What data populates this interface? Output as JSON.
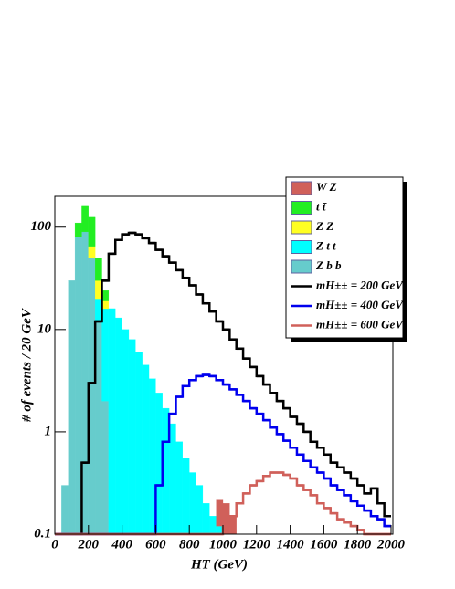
{
  "chart_data": {
    "type": "histogram",
    "x_label": "HT (GeV)",
    "y_label": "# of events / 20 GeV",
    "log_y": true,
    "stacked": true,
    "xlim": [
      0,
      2000
    ],
    "ylim": [
      0.1,
      200
    ],
    "xticks": [
      0,
      200,
      400,
      600,
      800,
      1000,
      1200,
      1400,
      1600,
      1800,
      2000
    ],
    "yticks": [
      0.1,
      1,
      10,
      100
    ],
    "bins": [
      0,
      40,
      80,
      120,
      160,
      200,
      240,
      280,
      320,
      360,
      400,
      440,
      480,
      520,
      560,
      600,
      640,
      680,
      720,
      760,
      800,
      840,
      880,
      920,
      960,
      1000,
      1040,
      1080,
      1120,
      1160,
      1200,
      1240,
      1280,
      1320,
      1360,
      1400,
      1440,
      1480,
      1520,
      1560,
      1600,
      1640,
      1680,
      1720,
      1760,
      1800,
      1840,
      1880,
      1920,
      1960,
      2000
    ],
    "series": [
      {
        "name": "W Z",
        "style": "fill",
        "color": "#d0605a",
        "values": [
          0,
          0,
          0,
          0,
          0,
          0,
          0,
          0,
          0,
          0,
          0,
          0,
          0,
          0,
          0,
          0,
          0,
          0,
          0,
          0,
          0,
          0,
          0,
          0,
          0.1,
          0.2,
          0.15,
          0,
          0,
          0,
          0,
          0,
          0,
          0,
          0,
          0,
          0,
          0,
          0,
          0,
          0,
          0,
          0,
          0,
          0,
          0,
          0,
          0,
          0,
          0
        ]
      },
      {
        "name": "t t̄",
        "style": "fill",
        "color": "#22ee22",
        "values": [
          0,
          0,
          0,
          30,
          70,
          60,
          20,
          5,
          0,
          0,
          0,
          0,
          0,
          0,
          0,
          0,
          0,
          0,
          0,
          0,
          0,
          0,
          0,
          0,
          0,
          0,
          0,
          0,
          0,
          0,
          0,
          0,
          0,
          0,
          0,
          0,
          0,
          0,
          0,
          0,
          0,
          0,
          0,
          0,
          0,
          0,
          0,
          0,
          0,
          0
        ]
      },
      {
        "name": "Z Z",
        "style": "fill",
        "color": "#ffff22",
        "values": [
          0,
          0,
          0,
          0,
          0,
          15,
          10,
          3,
          0,
          0,
          0,
          0,
          0,
          0,
          0,
          0,
          0,
          0,
          0,
          0,
          0,
          0,
          0,
          0,
          0,
          0,
          0,
          0,
          0,
          0,
          0,
          0,
          0,
          0,
          0,
          0,
          0,
          0,
          0,
          0,
          0,
          0,
          0,
          0,
          0,
          0,
          0,
          0,
          0,
          0
        ]
      },
      {
        "name": "Z t t",
        "style": "fill",
        "color": "#00ffff",
        "values": [
          0,
          0,
          0,
          0,
          0,
          0,
          8,
          14,
          16,
          13,
          10,
          8,
          6,
          4.5,
          3.3,
          2.4,
          1.7,
          1.2,
          0.8,
          0.55,
          0.4,
          0.3,
          0.2,
          0.15,
          0.12,
          0,
          0,
          0,
          0,
          0,
          0,
          0,
          0,
          0,
          0,
          0,
          0,
          0,
          0,
          0,
          0,
          0,
          0,
          0,
          0,
          0,
          0,
          0,
          0,
          0
        ]
      },
      {
        "name": "Z b b",
        "style": "fill",
        "color": "#66cccc",
        "values": [
          0,
          0.3,
          30,
          80,
          90,
          50,
          12,
          2,
          0,
          0,
          0,
          0,
          0,
          0,
          0,
          0,
          0,
          0,
          0,
          0,
          0,
          0,
          0,
          0,
          0,
          0,
          0,
          0,
          0,
          0,
          0,
          0,
          0,
          0,
          0,
          0,
          0,
          0,
          0,
          0,
          0,
          0,
          0,
          0,
          0,
          0,
          0,
          0,
          0,
          0
        ]
      },
      {
        "name": "mH±± = 200 GeV",
        "style": "line",
        "color": "#000000",
        "values": [
          0,
          0,
          0,
          0.1,
          0.5,
          3,
          12,
          30,
          55,
          75,
          85,
          88,
          85,
          78,
          70,
          60,
          52,
          45,
          38,
          32,
          27,
          22,
          18,
          15,
          12,
          10,
          8,
          6.5,
          5.2,
          4.3,
          3.5,
          2.9,
          2.4,
          2,
          1.7,
          1.4,
          1.2,
          1,
          0.8,
          0.7,
          0.6,
          0.5,
          0.45,
          0.4,
          0.35,
          0.3,
          0.25,
          0.28,
          0.2,
          0.15
        ]
      },
      {
        "name": "mH±± = 400 GeV",
        "style": "line",
        "color": "#0000ee",
        "values": [
          0,
          0,
          0,
          0,
          0,
          0,
          0,
          0,
          0,
          0,
          0,
          0,
          0,
          0,
          0.1,
          0.3,
          0.8,
          1.5,
          2.2,
          2.8,
          3.2,
          3.5,
          3.6,
          3.5,
          3.2,
          2.9,
          2.6,
          2.3,
          2,
          1.7,
          1.5,
          1.3,
          1.1,
          0.95,
          0.82,
          0.7,
          0.6,
          0.52,
          0.45,
          0.4,
          0.35,
          0.3,
          0.27,
          0.24,
          0.21,
          0.19,
          0.17,
          0.15,
          0.14,
          0.12
        ]
      },
      {
        "name": "mH±± = 600 GeV",
        "style": "line",
        "color": "#d0605a",
        "values": [
          0,
          0,
          0,
          0,
          0,
          0,
          0,
          0,
          0,
          0,
          0,
          0,
          0,
          0,
          0,
          0,
          0,
          0,
          0,
          0,
          0,
          0,
          0,
          0,
          0,
          0.12,
          0.15,
          0.2,
          0.25,
          0.3,
          0.33,
          0.37,
          0.4,
          0.4,
          0.38,
          0.35,
          0.3,
          0.27,
          0.24,
          0.2,
          0.18,
          0.16,
          0.14,
          0.13,
          0.12,
          0.11,
          0.1,
          0.1,
          0.1,
          0.1
        ]
      }
    ]
  }
}
